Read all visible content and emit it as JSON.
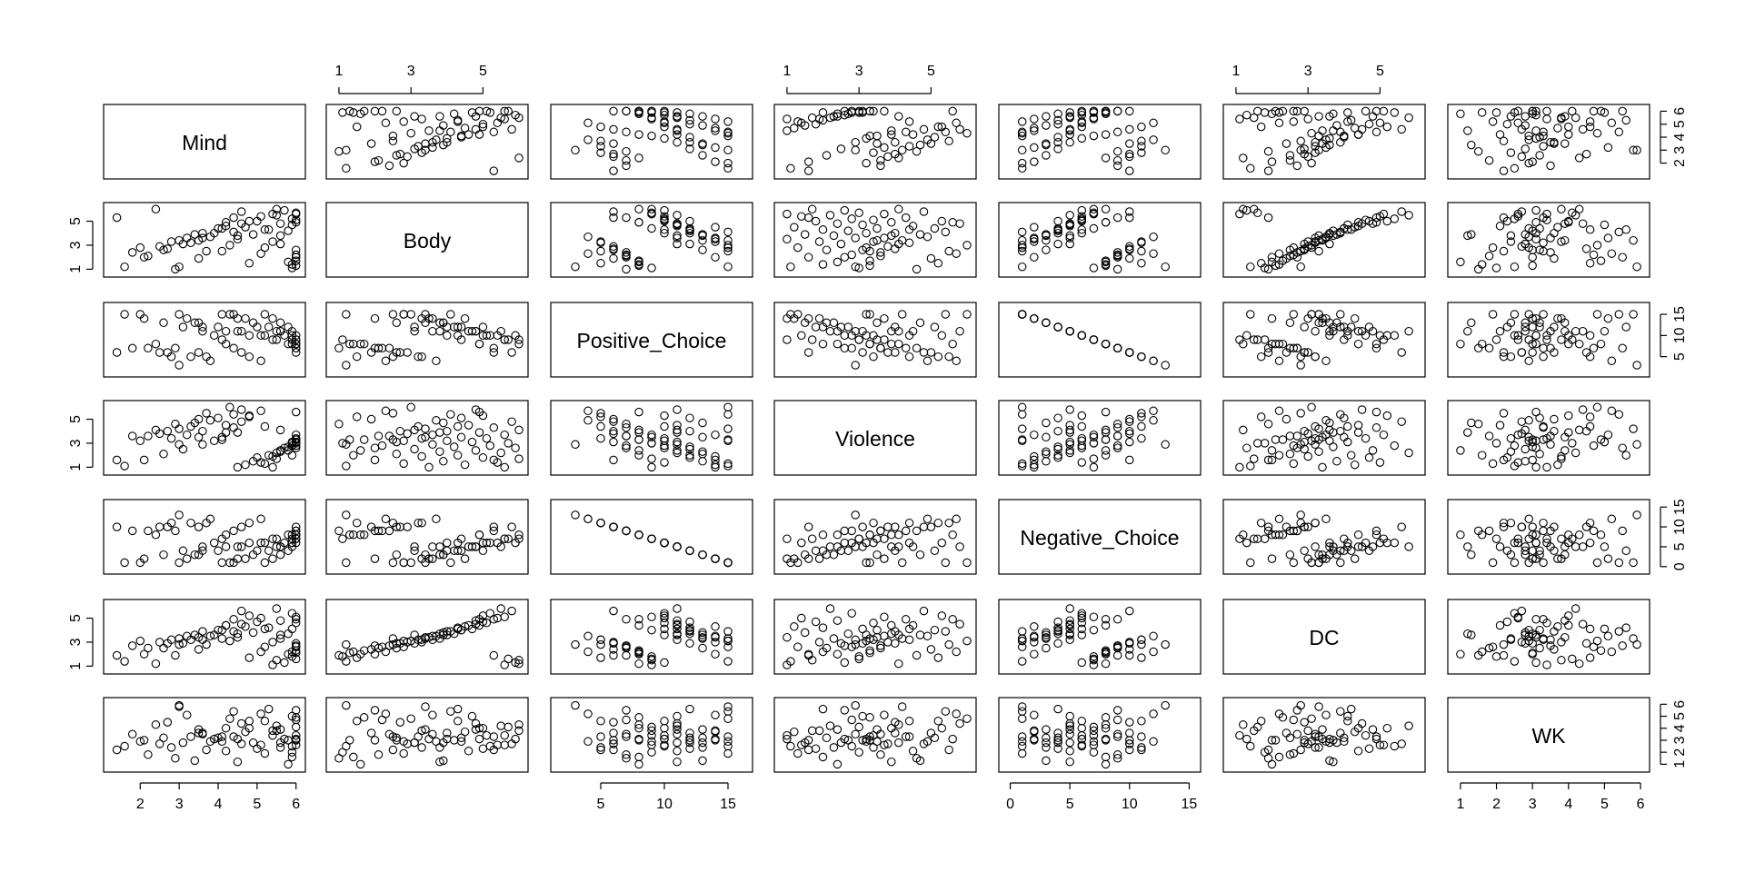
{
  "chart_data": {
    "type": "scatter-matrix",
    "title": "",
    "variables": [
      {
        "name": "Mind",
        "range": [
          1.2,
          6.1
        ],
        "ticks": [
          2,
          3,
          4,
          5,
          6
        ],
        "values": [
          1.6,
          2.1,
          2.6,
          3.1,
          3.6,
          3.9,
          4.1,
          4.2,
          4.4,
          4.6,
          4.8,
          5.1,
          5.2,
          5.4,
          5.6,
          5.8,
          5.9,
          6.0,
          6.0,
          2.4,
          2.9,
          3.5,
          3.7,
          4.3,
          4.5,
          4.9,
          5.3,
          5.6,
          5.9,
          6.0,
          6.0,
          2.2,
          2.7,
          3.3,
          3.8,
          4.4,
          4.7,
          5.0,
          5.5,
          5.7,
          5.9,
          6.0,
          1.8,
          2.5,
          3.0,
          3.4,
          4.0,
          4.6,
          5.1,
          5.5,
          5.8,
          6.0,
          6.0,
          2.8,
          3.2,
          3.6,
          4.2,
          4.8,
          5.4,
          5.9,
          6.0,
          2.0,
          3.5,
          4.5,
          5.2,
          6.0,
          1.4,
          3.0,
          4.1,
          5.6
        ]
      },
      {
        "name": "Body",
        "range": [
          0.8,
          6.1
        ],
        "ticks": [
          1,
          3,
          5
        ],
        "values": [
          1.2,
          2.0,
          2.6,
          3.1,
          3.6,
          4.0,
          4.4,
          4.9,
          5.3,
          5.8,
          1.5,
          2.3,
          2.8,
          3.3,
          3.8,
          4.2,
          4.7,
          5.1,
          5.6,
          6.0,
          1.0,
          1.9,
          2.5,
          3.0,
          3.5,
          3.9,
          4.3,
          4.8,
          5.2,
          5.7,
          1.3,
          2.1,
          2.7,
          3.2,
          3.7,
          4.1,
          4.5,
          5.0,
          5.5,
          5.9,
          1.1,
          1.7,
          2.4,
          2.9,
          3.4,
          3.9,
          4.4,
          4.8,
          5.4,
          6.0,
          1.6,
          2.2,
          2.6,
          3.3,
          3.6,
          4.0,
          4.6,
          5.0,
          5.6,
          1.4,
          2.0,
          2.8,
          3.4,
          3.8,
          4.3,
          4.9,
          5.3,
          1.2,
          2.5,
          3.1
        ]
      },
      {
        "name": "Positive_Choice",
        "range": [
          1.5,
          16.5
        ],
        "ticks": [
          5,
          10,
          15
        ],
        "values": [
          15,
          14,
          13,
          12,
          11,
          10,
          9,
          8,
          7,
          6,
          5,
          4,
          15,
          14,
          13,
          12,
          11,
          10,
          9,
          8,
          7,
          6,
          5,
          15,
          14,
          13,
          12,
          11,
          10,
          9,
          8,
          7,
          6,
          5,
          4,
          15,
          14,
          12,
          11,
          10,
          9,
          8,
          7,
          6,
          15,
          13,
          12,
          11,
          10,
          9,
          8,
          7,
          6,
          5,
          14,
          12,
          11,
          10,
          9,
          8,
          7,
          15,
          13,
          11,
          10,
          8,
          6,
          3,
          15,
          11
        ]
      },
      {
        "name": "Violence",
        "range": [
          0.8,
          6.1
        ],
        "ticks": [
          1,
          3,
          5
        ],
        "values": [
          1.1,
          1.6,
          2.1,
          2.5,
          2.9,
          3.2,
          3.5,
          3.9,
          4.3,
          4.8,
          5.2,
          5.7,
          1.3,
          1.9,
          2.3,
          2.7,
          3.1,
          3.4,
          3.7,
          4.1,
          4.6,
          5.0,
          5.5,
          6.0,
          1.0,
          1.5,
          2.0,
          2.4,
          2.8,
          3.0,
          3.3,
          3.6,
          4.0,
          4.4,
          4.9,
          5.4,
          1.2,
          1.8,
          2.2,
          2.6,
          3.0,
          3.3,
          3.6,
          3.8,
          4.2,
          4.7,
          5.1,
          5.8,
          1.4,
          1.7,
          2.4,
          2.8,
          3.1,
          3.4,
          3.7,
          4.0,
          4.5,
          5.3,
          1.0,
          2.0,
          2.6,
          3.2,
          3.5,
          3.9,
          4.4,
          5.6,
          1.6,
          2.9,
          3.3,
          4.1
        ]
      },
      {
        "name": "Negative_Choice",
        "range": [
          -0.5,
          15.5
        ],
        "ticks": [
          0,
          5,
          10,
          15
        ],
        "values": [
          1,
          2,
          3,
          4,
          5,
          6,
          7,
          8,
          9,
          10,
          11,
          12,
          1,
          2,
          3,
          4,
          5,
          6,
          7,
          8,
          9,
          10,
          11,
          1,
          2,
          3,
          4,
          5,
          6,
          7,
          8,
          9,
          10,
          11,
          12,
          1,
          2,
          4,
          5,
          6,
          7,
          8,
          9,
          10,
          1,
          3,
          4,
          5,
          6,
          7,
          8,
          9,
          10,
          11,
          2,
          4,
          5,
          6,
          7,
          8,
          9,
          1,
          3,
          5,
          6,
          8,
          10,
          13,
          1,
          5
        ]
      },
      {
        "name": "DC",
        "range": [
          0.8,
          6.1
        ],
        "ticks": [
          1,
          3,
          5
        ],
        "values": [
          1.4,
          2.0,
          2.5,
          2.9,
          3.2,
          3.6,
          4.0,
          4.4,
          4.9,
          5.6,
          1.7,
          2.2,
          2.6,
          3.0,
          3.3,
          3.7,
          4.1,
          4.6,
          5.1,
          1.2,
          1.9,
          2.4,
          2.8,
          3.1,
          3.4,
          3.8,
          4.2,
          4.8,
          5.4,
          1.6,
          2.1,
          2.5,
          2.9,
          3.2,
          3.5,
          3.9,
          4.3,
          4.7,
          5.8,
          1.3,
          1.8,
          2.3,
          2.7,
          3.0,
          3.3,
          3.6,
          4.0,
          4.5,
          5.0,
          1.5,
          2.0,
          2.6,
          2.9,
          3.2,
          3.5,
          3.9,
          4.4,
          5.2,
          1.1,
          2.2,
          2.7,
          3.1,
          3.4,
          3.7,
          4.1,
          4.9,
          1.9,
          2.8,
          3.3,
          3.6
        ]
      },
      {
        "name": "WK",
        "range": [
          0.8,
          6.1
        ],
        "ticks": [
          1,
          2,
          3,
          4,
          5,
          6
        ],
        "values": [
          2.5,
          3.0,
          3.2,
          2.8,
          3.5,
          3.1,
          2.9,
          4.0,
          3.3,
          2.7,
          4.6,
          5.2,
          1.9,
          3.8,
          2.4,
          3.0,
          5.0,
          3.4,
          2.6,
          4.3,
          1.5,
          3.6,
          2.2,
          4.8,
          3.1,
          2.8,
          5.6,
          3.9,
          2.5,
          4.1,
          3.0,
          1.8,
          4.5,
          3.3,
          2.9,
          5.4,
          3.7,
          2.3,
          4.2,
          3.1,
          2.0,
          4.9,
          3.5,
          2.7,
          5.8,
          1.3,
          3.2,
          4.4,
          2.6,
          3.8,
          1.0,
          4.7,
          3.0,
          2.4,
          5.1,
          3.6,
          2.1,
          4.0,
          3.4,
          1.6,
          5.5,
          2.9,
          3.9,
          1.2,
          4.6,
          3.1,
          2.2,
          5.9,
          3.3,
          2.8
        ]
      }
    ]
  }
}
